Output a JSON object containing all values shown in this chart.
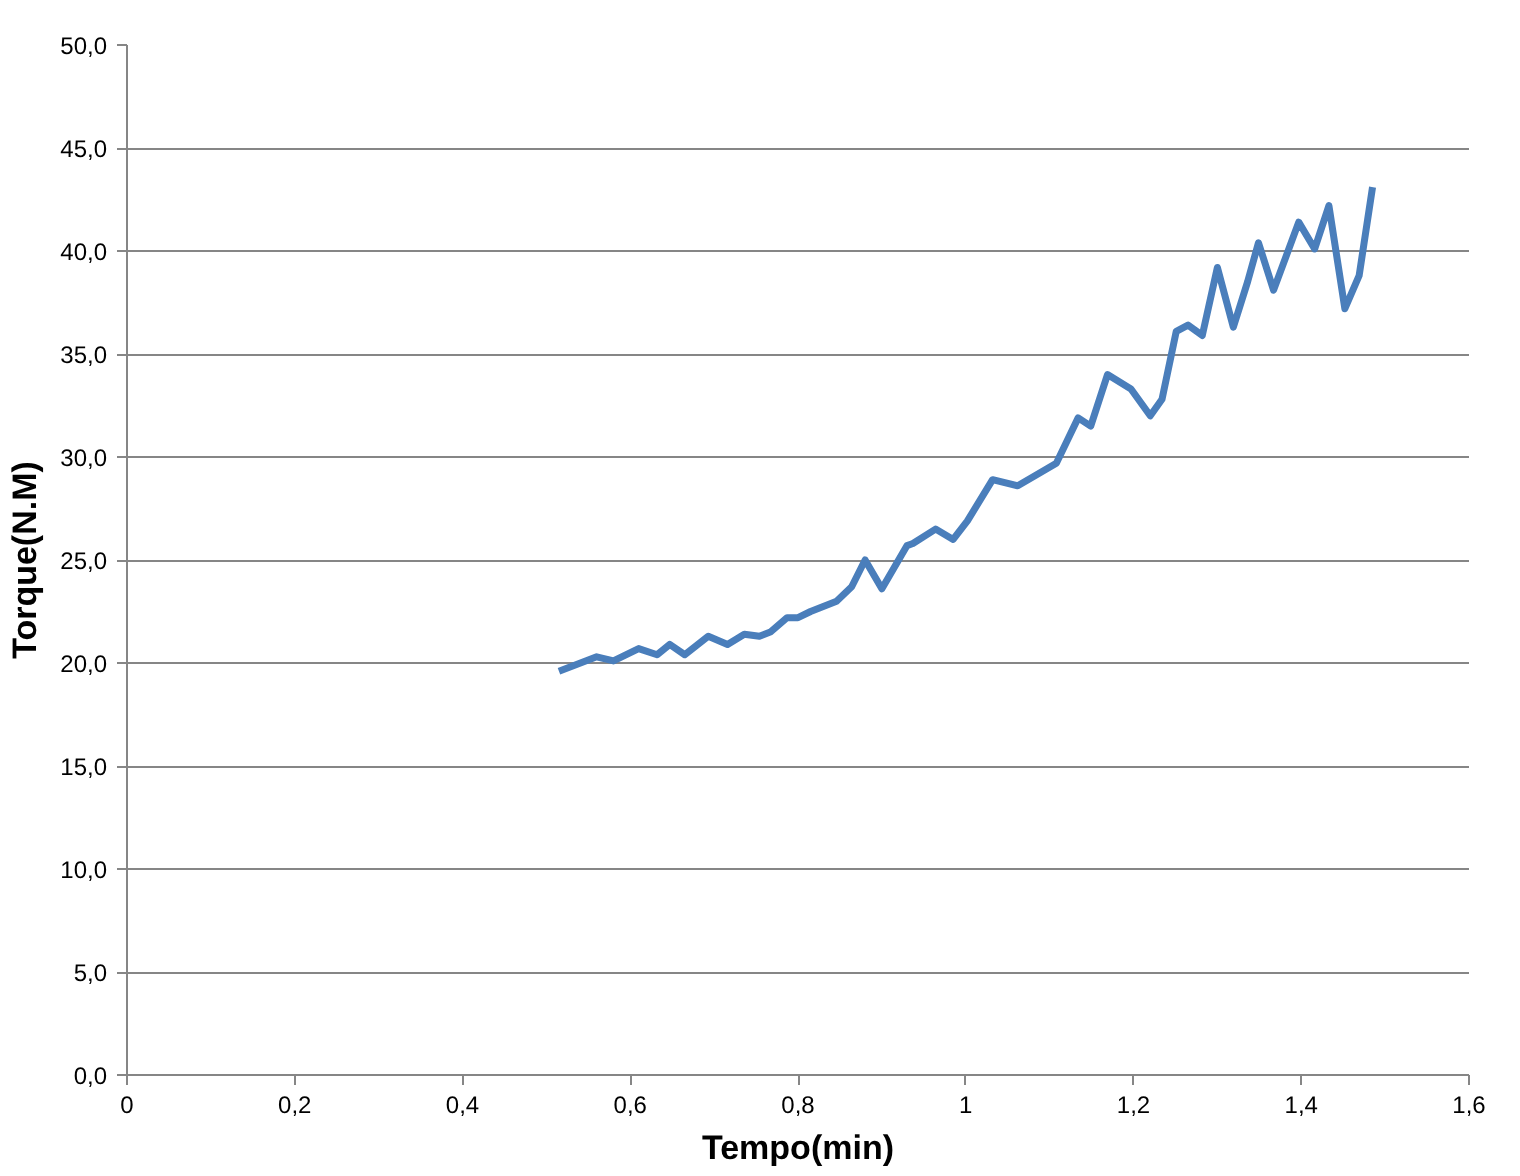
{
  "chart_data": {
    "type": "line",
    "xlabel": "Tempo(min)",
    "ylabel": "Torque(N.M)",
    "xlim": [
      0,
      1.6
    ],
    "ylim": [
      0,
      50
    ],
    "xticks": [
      0,
      {
        "value": 0.2,
        "label": "0,2"
      },
      {
        "value": 0.4,
        "label": "0,4"
      },
      {
        "value": 0.6,
        "label": "0,6"
      },
      {
        "value": 0.8,
        "label": "0,8"
      },
      1,
      {
        "value": 1.2,
        "label": "1,2"
      },
      {
        "value": 1.4,
        "label": "1,4"
      },
      {
        "value": 1.6,
        "label": "1,6"
      }
    ],
    "yticks": [
      {
        "value": 0,
        "label": "0,0"
      },
      {
        "value": 5,
        "label": "5,0"
      },
      {
        "value": 10,
        "label": "10,0"
      },
      {
        "value": 15,
        "label": "15,0"
      },
      {
        "value": 20,
        "label": "20,0"
      },
      {
        "value": 25,
        "label": "25,0"
      },
      {
        "value": 30,
        "label": "30,0"
      },
      {
        "value": 35,
        "label": "35,0"
      },
      {
        "value": 40,
        "label": "40,0"
      },
      {
        "value": 45,
        "label": "45,0"
      },
      {
        "value": 50,
        "label": "50,0"
      }
    ],
    "grid": "y",
    "marker": "none",
    "line_style": "solid",
    "series": [
      {
        "color": "#4a7ebb",
        "x": [
          0.515,
          0.56,
          0.58,
          0.61,
          0.632,
          0.647,
          0.665,
          0.693,
          0.716,
          0.736,
          0.754,
          0.767,
          0.787,
          0.8,
          0.815,
          0.846,
          0.864,
          0.88,
          0.9,
          0.93,
          0.937,
          0.964,
          0.985,
          1.002,
          1.032,
          1.062,
          1.083,
          1.108,
          1.134,
          1.149,
          1.169,
          1.197,
          1.22,
          1.234,
          1.251,
          1.265,
          1.282,
          1.3,
          1.319,
          1.336,
          1.349,
          1.367,
          1.397,
          1.416,
          1.433,
          1.452,
          1.469,
          1.485
        ],
        "values": [
          19.6,
          20.3,
          20.1,
          20.7,
          20.4,
          20.9,
          20.4,
          21.3,
          20.9,
          21.4,
          21.3,
          21.5,
          22.2,
          22.2,
          22.5,
          23.0,
          23.7,
          25.0,
          23.6,
          25.7,
          25.8,
          26.5,
          26.0,
          26.9,
          28.9,
          28.6,
          29.1,
          29.7,
          31.9,
          31.5,
          34.0,
          33.3,
          32.0,
          32.8,
          36.1,
          36.4,
          35.9,
          39.2,
          36.3,
          38.5,
          40.4,
          38.1,
          41.4,
          40.1,
          42.2,
          37.2,
          38.8,
          43.1
        ]
      }
    ]
  }
}
